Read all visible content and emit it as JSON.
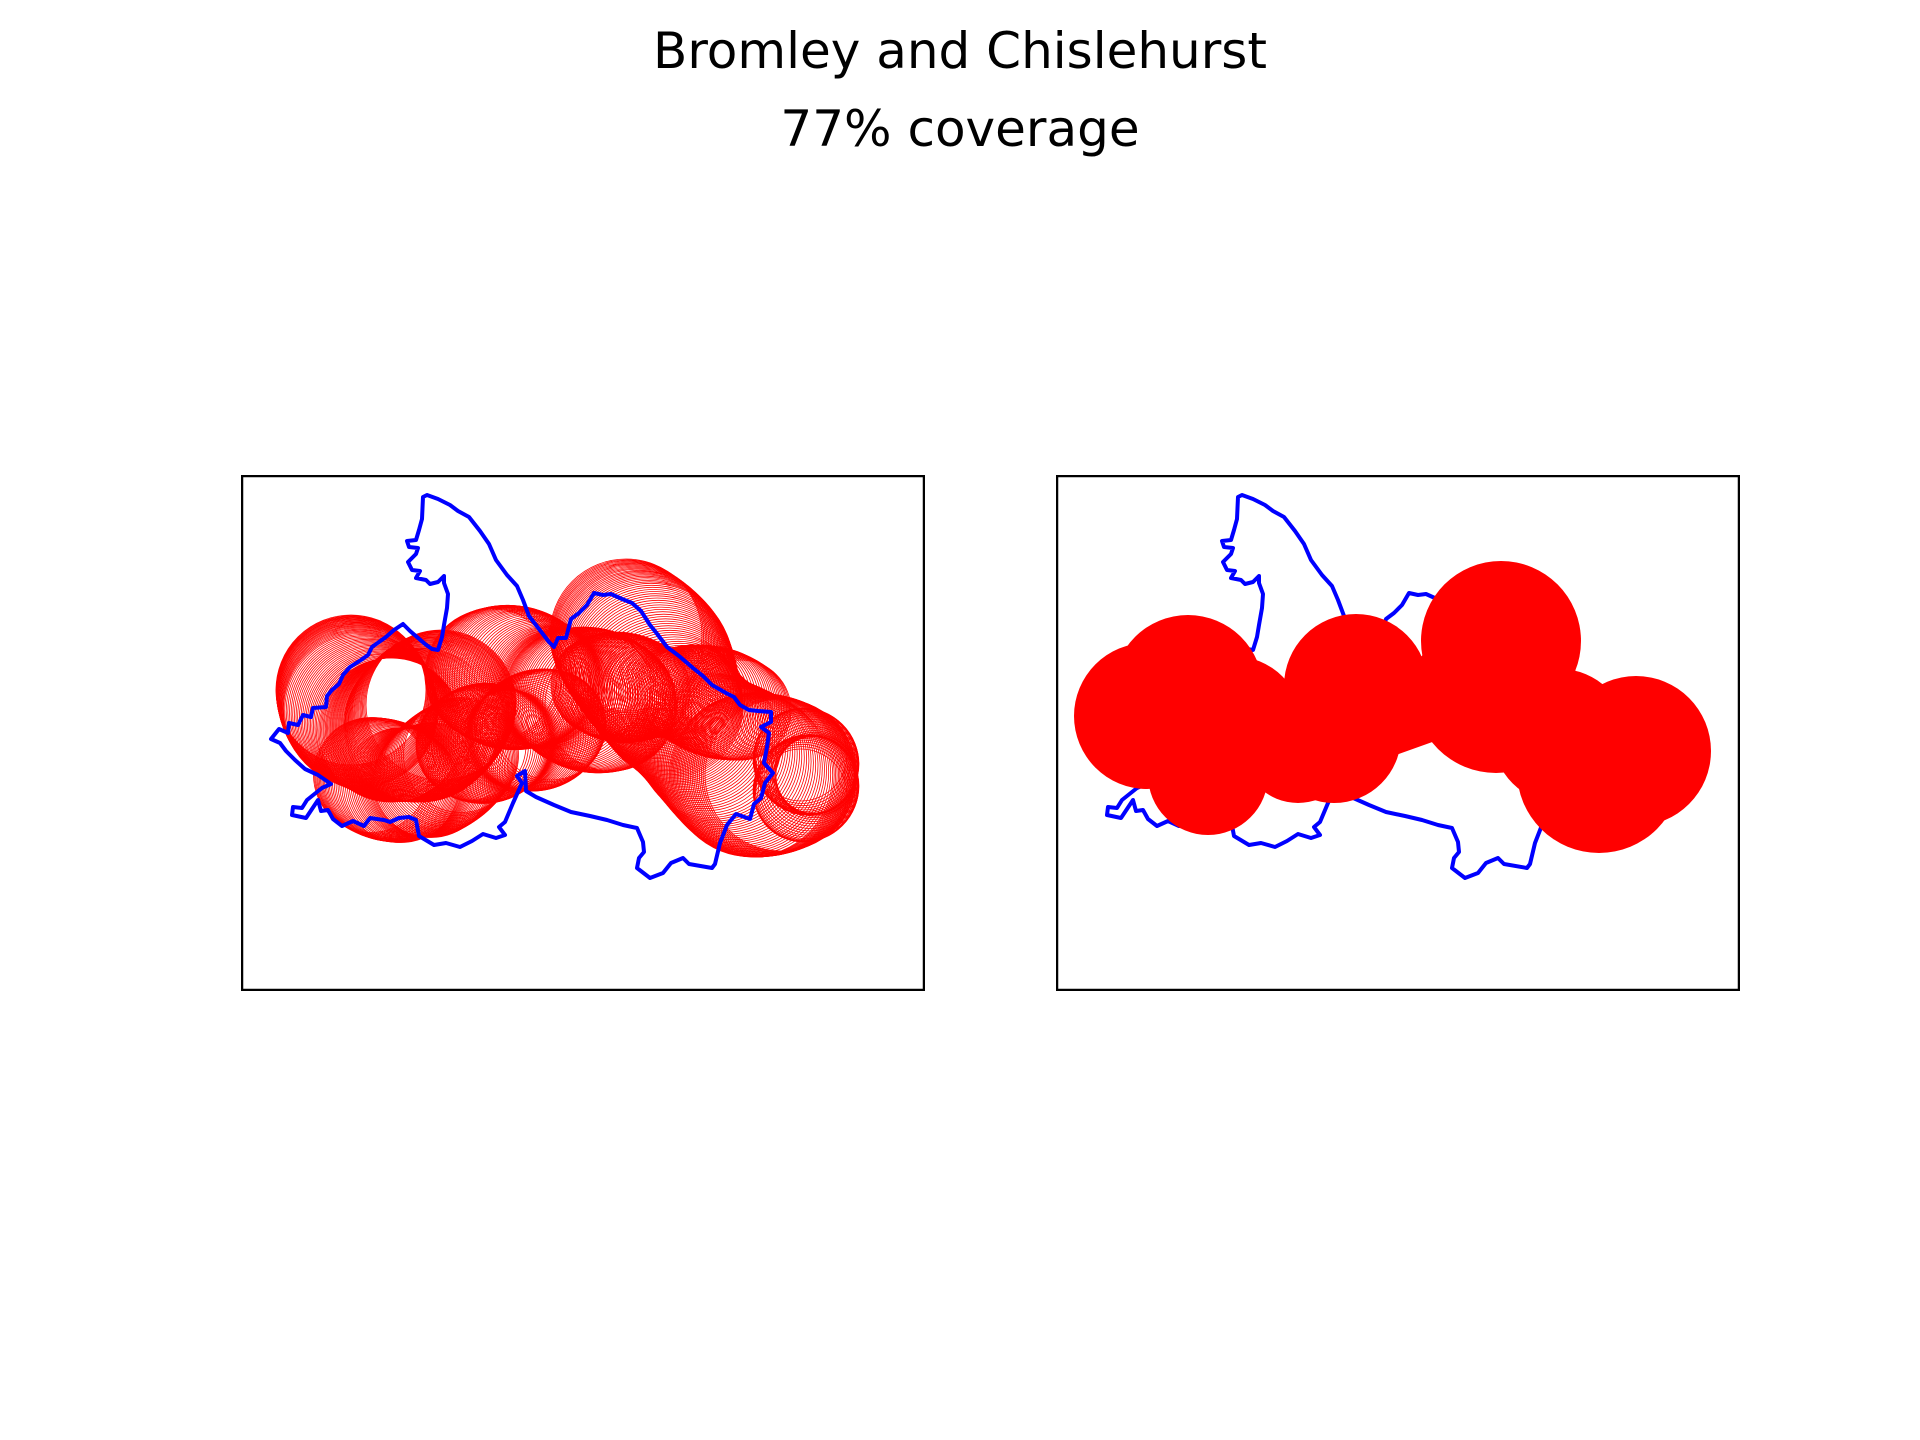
{
  "figure": {
    "title": "Bromley and Chislehurst",
    "subtitle": "77% coverage",
    "panels": [
      {
        "name": "circle-outlines",
        "style": "outline"
      },
      {
        "name": "circle-union",
        "style": "filled"
      }
    ]
  },
  "colors": {
    "boundary": "#0000ff",
    "coverage": "#ff0000",
    "frame": "#000000",
    "background": "#ffffff"
  }
}
